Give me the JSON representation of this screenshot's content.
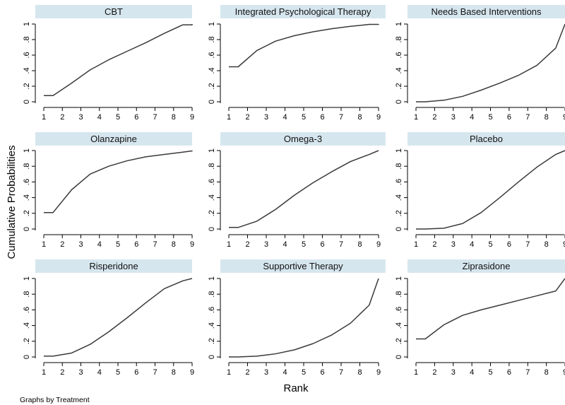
{
  "chart_data": {
    "type": "line",
    "layout": "small-multiples 3x3",
    "xlabel": "Rank",
    "ylabel": "Cumulative Probabilities",
    "note": "Graphs by Treatment",
    "x_ticks": [
      "1",
      "2",
      "3",
      "4",
      "5",
      "6",
      "7",
      "8",
      "9"
    ],
    "y_ticks": [
      "0",
      ".2",
      ".4",
      ".6",
      ".8",
      "1"
    ],
    "xlim": [
      1,
      9
    ],
    "ylim": [
      0,
      1
    ],
    "grid": false,
    "header_color": "#d6e6ee",
    "line_color": "#3a3a3a",
    "panels": [
      {
        "title": "CBT",
        "x": [
          1.5,
          2.5,
          3.5,
          4.5,
          5.5,
          6.5,
          7.5,
          8.5,
          9
        ],
        "y": [
          0.08,
          0.24,
          0.41,
          0.54,
          0.65,
          0.76,
          0.88,
          0.99,
          0.99
        ]
      },
      {
        "title": "Integrated Psychological Therapy",
        "x": [
          1.5,
          2.5,
          3.5,
          4.5,
          5.5,
          6.5,
          7.5,
          8.5,
          9
        ],
        "y": [
          0.45,
          0.66,
          0.78,
          0.85,
          0.9,
          0.94,
          0.97,
          0.995,
          0.995
        ]
      },
      {
        "title": "Needs Based Interventions",
        "x": [
          1.5,
          2.5,
          3.5,
          4.5,
          5.5,
          6.5,
          7.5,
          8.5,
          9
        ],
        "y": [
          0.0,
          0.02,
          0.07,
          0.15,
          0.24,
          0.34,
          0.47,
          0.69,
          1.0
        ]
      },
      {
        "title": "Olanzapine",
        "x": [
          1.5,
          2.5,
          3.5,
          4.5,
          5.5,
          6.5,
          7.5,
          8.5,
          9
        ],
        "y": [
          0.21,
          0.5,
          0.7,
          0.8,
          0.87,
          0.92,
          0.95,
          0.98,
          0.995
        ]
      },
      {
        "title": "Omega-3",
        "x": [
          1.5,
          2.5,
          3.5,
          4.5,
          5.5,
          6.5,
          7.5,
          8.5,
          9
        ],
        "y": [
          0.02,
          0.1,
          0.25,
          0.43,
          0.59,
          0.73,
          0.86,
          0.95,
          1.0
        ]
      },
      {
        "title": "Placebo",
        "x": [
          1.5,
          2.5,
          3.5,
          4.5,
          5.5,
          6.5,
          7.5,
          8.5,
          9
        ],
        "y": [
          0.0,
          0.01,
          0.07,
          0.21,
          0.4,
          0.6,
          0.79,
          0.95,
          1.0
        ]
      },
      {
        "title": "Risperidone",
        "x": [
          1.5,
          2.5,
          3.5,
          4.5,
          5.5,
          6.5,
          7.5,
          8.5,
          9
        ],
        "y": [
          0.01,
          0.05,
          0.16,
          0.32,
          0.5,
          0.69,
          0.87,
          0.97,
          1.0
        ]
      },
      {
        "title": "Supportive Therapy",
        "x": [
          1.5,
          2.5,
          3.5,
          4.5,
          5.5,
          6.5,
          7.5,
          8.5,
          9
        ],
        "y": [
          0.0,
          0.01,
          0.04,
          0.09,
          0.17,
          0.28,
          0.43,
          0.66,
          1.0
        ]
      },
      {
        "title": "Ziprasidone",
        "x": [
          1.5,
          2.5,
          3.5,
          4.5,
          5.5,
          6.5,
          7.5,
          8.5,
          9
        ],
        "y": [
          0.23,
          0.41,
          0.53,
          0.6,
          0.66,
          0.72,
          0.78,
          0.84,
          1.0
        ]
      }
    ]
  }
}
